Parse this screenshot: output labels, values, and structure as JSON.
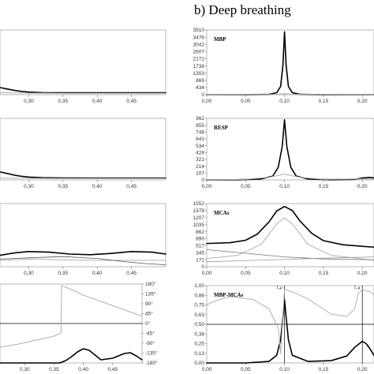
{
  "figure": {
    "section_title": "b) Deep breathing"
  },
  "chart_data": [
    {
      "id": "left-top",
      "type": "line",
      "xlim": [
        0.258,
        0.5
      ],
      "ylim": [
        0,
        1
      ],
      "x_ticks": [
        "0,30",
        "0,35",
        "0,40",
        "0,45"
      ],
      "x_tick_values": [
        0.3,
        0.35,
        0.4,
        0.45
      ],
      "y_ticks": [],
      "y_tick_values": [],
      "series": [
        {
          "color": "#000000",
          "width": 1.6,
          "x": [
            0.258,
            0.27,
            0.28,
            0.29,
            0.3,
            0.32,
            0.35,
            0.4,
            0.45,
            0.5
          ],
          "y": [
            0.11,
            0.085,
            0.065,
            0.05,
            0.04,
            0.032,
            0.03,
            0.03,
            0.03,
            0.03
          ]
        },
        {
          "color": "#b0b0b0",
          "width": 1.0,
          "x": [
            0.258,
            0.28,
            0.3,
            0.35,
            0.4,
            0.45,
            0.5
          ],
          "y": [
            0.03,
            0.026,
            0.024,
            0.022,
            0.022,
            0.022,
            0.022
          ]
        }
      ]
    },
    {
      "id": "left-2",
      "type": "line",
      "xlim": [
        0.258,
        0.5
      ],
      "ylim": [
        0,
        1
      ],
      "x_ticks": [
        "0,30",
        "0,35",
        "0,40",
        "0,45"
      ],
      "x_tick_values": [
        0.3,
        0.35,
        0.4,
        0.45
      ],
      "y_ticks": [],
      "y_tick_values": [],
      "series": [
        {
          "color": "#000000",
          "width": 1.6,
          "x": [
            0.258,
            0.27,
            0.28,
            0.29,
            0.3,
            0.32,
            0.35,
            0.4,
            0.45,
            0.5
          ],
          "y": [
            0.13,
            0.1,
            0.075,
            0.058,
            0.046,
            0.036,
            0.032,
            0.03,
            0.03,
            0.03
          ]
        },
        {
          "color": "#b0b0b0",
          "width": 1.0,
          "x": [
            0.258,
            0.3,
            0.35,
            0.4,
            0.45,
            0.5
          ],
          "y": [
            0.03,
            0.025,
            0.022,
            0.022,
            0.022,
            0.022
          ]
        }
      ]
    },
    {
      "id": "left-3",
      "type": "line",
      "xlim": [
        0.258,
        0.5
      ],
      "ylim": [
        0,
        1
      ],
      "x_ticks": [
        "0,30",
        "0,35",
        "0,40",
        "0,45"
      ],
      "x_tick_values": [
        0.3,
        0.35,
        0.4,
        0.45
      ],
      "y_ticks": [],
      "y_tick_values": [],
      "series": [
        {
          "color": "#000000",
          "width": 1.6,
          "x": [
            0.258,
            0.28,
            0.3,
            0.33,
            0.36,
            0.39,
            0.42,
            0.45,
            0.48,
            0.5
          ],
          "y": [
            0.18,
            0.22,
            0.24,
            0.23,
            0.2,
            0.19,
            0.21,
            0.24,
            0.23,
            0.2
          ]
        },
        {
          "color": "#b0b0b0",
          "width": 1.0,
          "x": [
            0.258,
            0.3,
            0.35,
            0.4,
            0.45,
            0.5
          ],
          "y": [
            0.1,
            0.12,
            0.11,
            0.1,
            0.1,
            0.1
          ]
        },
        {
          "color": "#555555",
          "width": 0.8,
          "x": [
            0.258,
            0.3,
            0.35,
            0.4,
            0.44,
            0.47,
            0.5
          ],
          "y": [
            0.12,
            0.14,
            0.16,
            0.13,
            0.08,
            0.05,
            0.03
          ]
        }
      ]
    },
    {
      "id": "left-bottom",
      "type": "line",
      "xlim": [
        0.258,
        0.5
      ],
      "ylim": [
        0,
        1
      ],
      "x_ticks": [
        "0,30",
        "0,35",
        "0,40",
        "0,45"
      ],
      "x_tick_values": [
        0.3,
        0.35,
        0.4,
        0.45
      ],
      "y_ticks": [],
      "y_tick_values": [],
      "right_ticks": [
        "180°",
        "135°",
        "90°",
        "45°",
        "0°",
        "-45°",
        "-90°",
        "-135°",
        "-180°"
      ],
      "right_tick_values": [
        1.0,
        0.875,
        0.75,
        0.625,
        0.5,
        0.375,
        0.25,
        0.125,
        0.0
      ],
      "hlines": [
        0.5
      ],
      "series": [
        {
          "color": "#000000",
          "width": 1.6,
          "x": [
            0.258,
            0.3,
            0.33,
            0.36,
            0.37,
            0.38,
            0.39,
            0.4,
            0.41,
            0.42,
            0.43,
            0.45,
            0.47,
            0.48,
            0.49,
            0.5
          ],
          "y": [
            0.0,
            0.0,
            0.0,
            0.0,
            0.03,
            0.08,
            0.14,
            0.18,
            0.16,
            0.1,
            0.04,
            0.06,
            0.12,
            0.13,
            0.09,
            0.04
          ]
        },
        {
          "color": "#b0b0b0",
          "width": 1.0,
          "x": [
            0.258,
            0.29,
            0.32,
            0.35,
            0.362,
            0.363,
            0.38,
            0.4,
            0.43,
            0.46,
            0.49,
            0.5
          ],
          "y": [
            0.2,
            0.24,
            0.29,
            0.34,
            0.38,
            0.98,
            0.93,
            0.86,
            0.78,
            0.7,
            0.62,
            0.6
          ]
        }
      ]
    },
    {
      "id": "mbp",
      "type": "line",
      "label": "MBP",
      "xlim": [
        0,
        0.215
      ],
      "ylim": [
        0,
        3910
      ],
      "x_ticks": [
        "0,00",
        "0,05",
        "0,10",
        "0,15",
        "0,20"
      ],
      "x_tick_values": [
        0,
        0.05,
        0.1,
        0.15,
        0.2
      ],
      "y_ticks": [
        "3910",
        "3476",
        "3041",
        "2607",
        "2172",
        "1738",
        "1303",
        "869",
        "434",
        "0"
      ],
      "y_tick_values": [
        3910,
        3476,
        3041,
        2607,
        2172,
        1738,
        1303,
        869,
        434,
        0
      ],
      "series": [
        {
          "color": "#000000",
          "width": 1.6,
          "x": [
            0,
            0.05,
            0.08,
            0.09,
            0.095,
            0.098,
            0.1,
            0.102,
            0.105,
            0.11,
            0.12,
            0.15,
            0.215
          ],
          "y": [
            0,
            0,
            20,
            120,
            500,
            1800,
            3800,
            1800,
            500,
            120,
            20,
            0,
            0
          ]
        },
        {
          "color": "#b0b0b0",
          "width": 1.0,
          "x": [
            0,
            0.09,
            0.1,
            0.11,
            0.215
          ],
          "y": [
            0,
            20,
            60,
            20,
            0
          ]
        }
      ]
    },
    {
      "id": "resp",
      "type": "line",
      "label": "RESP",
      "xlim": [
        0,
        0.215
      ],
      "ylim": [
        0,
        962
      ],
      "x_ticks": [
        "0,00",
        "0,05",
        "0,10",
        "0,15",
        "0,20"
      ],
      "x_tick_values": [
        0,
        0.05,
        0.1,
        0.15,
        0.2
      ],
      "y_ticks": [
        "962",
        "855",
        "748",
        "641",
        "534",
        "428",
        "321",
        "214",
        "107",
        "0"
      ],
      "y_tick_values": [
        962,
        855,
        748,
        641,
        534,
        428,
        321,
        214,
        107,
        0
      ],
      "series": [
        {
          "color": "#000000",
          "width": 1.6,
          "x": [
            0,
            0.04,
            0.07,
            0.085,
            0.092,
            0.097,
            0.1,
            0.103,
            0.108,
            0.115,
            0.13,
            0.16,
            0.19,
            0.2,
            0.21,
            0.215
          ],
          "y": [
            0,
            2,
            15,
            60,
            200,
            520,
            940,
            520,
            200,
            60,
            15,
            2,
            8,
            30,
            38,
            30
          ]
        },
        {
          "color": "#b0b0b0",
          "width": 1.0,
          "x": [
            0,
            0.05,
            0.08,
            0.1,
            0.12,
            0.15,
            0.2,
            0.215
          ],
          "y": [
            0,
            10,
            40,
            90,
            40,
            10,
            15,
            10
          ]
        }
      ]
    },
    {
      "id": "mcas",
      "type": "line",
      "label": "MCAs",
      "xlim": [
        0,
        0.215
      ],
      "ylim": [
        0,
        1552
      ],
      "x_ticks": [
        "0,00",
        "0,05",
        "0,10",
        "0,15",
        "0,20"
      ],
      "x_tick_values": [
        0,
        0.05,
        0.1,
        0.15,
        0.2
      ],
      "y_ticks": [
        "1552",
        "1379",
        "1207",
        "1035",
        "862",
        "690",
        "517",
        "345",
        "172",
        "0"
      ],
      "y_tick_values": [
        1552,
        1379,
        1207,
        1035,
        862,
        690,
        517,
        345,
        172,
        0
      ],
      "series": [
        {
          "color": "#000000",
          "width": 1.6,
          "x": [
            0,
            0.03,
            0.05,
            0.065,
            0.08,
            0.09,
            0.1,
            0.11,
            0.12,
            0.135,
            0.15,
            0.175,
            0.2,
            0.215
          ],
          "y": [
            570,
            590,
            650,
            800,
            1100,
            1370,
            1480,
            1380,
            1120,
            820,
            640,
            540,
            500,
            480
          ]
        },
        {
          "color": "#b0b0b0",
          "width": 1.0,
          "x": [
            0,
            0.04,
            0.07,
            0.09,
            0.1,
            0.11,
            0.13,
            0.16,
            0.215
          ],
          "y": [
            200,
            280,
            550,
            1050,
            1200,
            1050,
            550,
            280,
            160
          ]
        },
        {
          "color": "#777777",
          "width": 0.8,
          "x": [
            0,
            0.05,
            0.1,
            0.15,
            0.215
          ],
          "y": [
            420,
            330,
            240,
            190,
            170
          ]
        },
        {
          "color": "#999999",
          "width": 0.8,
          "x": [
            0,
            0.05,
            0.1,
            0.15,
            0.215
          ],
          "y": [
            120,
            150,
            180,
            210,
            240
          ]
        }
      ]
    },
    {
      "id": "mbp-mcas",
      "type": "line",
      "label": "MBP-MCAs",
      "xlim": [
        0,
        0.215
      ],
      "ylim": [
        0,
        1
      ],
      "x_ticks": [
        "0,00",
        "0,05",
        "0,10",
        "0,15",
        "0,20"
      ],
      "x_tick_values": [
        0,
        0.05,
        0.1,
        0.15,
        0.2
      ],
      "y_ticks": [
        "1,00",
        "0,88",
        "0,75",
        "0,63",
        "0,50",
        "0,38",
        "0,25",
        "0,13",
        "0,00"
      ],
      "y_tick_values": [
        1.0,
        0.875,
        0.75,
        0.625,
        0.5,
        0.375,
        0.25,
        0.125,
        0.0
      ],
      "hlines": [
        0.5
      ],
      "vlines": [
        0.1,
        0.2
      ],
      "annotations": [
        {
          "text": "f₁,ρ",
          "x": 0.097,
          "y": 0.96
        },
        {
          "text": "f₁,ρ",
          "x": 0.197,
          "y": 0.96
        }
      ],
      "series": [
        {
          "color": "#000000",
          "width": 1.6,
          "x": [
            0,
            0.05,
            0.08,
            0.09,
            0.095,
            0.098,
            0.1,
            0.102,
            0.105,
            0.11,
            0.13,
            0.16,
            0.18,
            0.19,
            0.2,
            0.205,
            0.21,
            0.215
          ],
          "y": [
            0,
            0,
            0.02,
            0.1,
            0.3,
            0.6,
            0.82,
            0.6,
            0.3,
            0.1,
            0.02,
            0.03,
            0.09,
            0.2,
            0.28,
            0.25,
            0.18,
            0.1
          ]
        },
        {
          "color": "#b0b0b0",
          "width": 1.0,
          "x": [
            0,
            0.01,
            0.03,
            0.06,
            0.08,
            0.092,
            0.095,
            0.1,
            0.11,
            0.13,
            0.16,
            0.18,
            0.19,
            0.195,
            0.2,
            0.21,
            0.215
          ],
          "y": [
            0.75,
            0.8,
            0.86,
            0.82,
            0.7,
            0.45,
            0.12,
            0.95,
            0.92,
            0.83,
            0.63,
            0.6,
            0.7,
            0.9,
            0.95,
            0.92,
            0.88
          ]
        }
      ]
    }
  ]
}
